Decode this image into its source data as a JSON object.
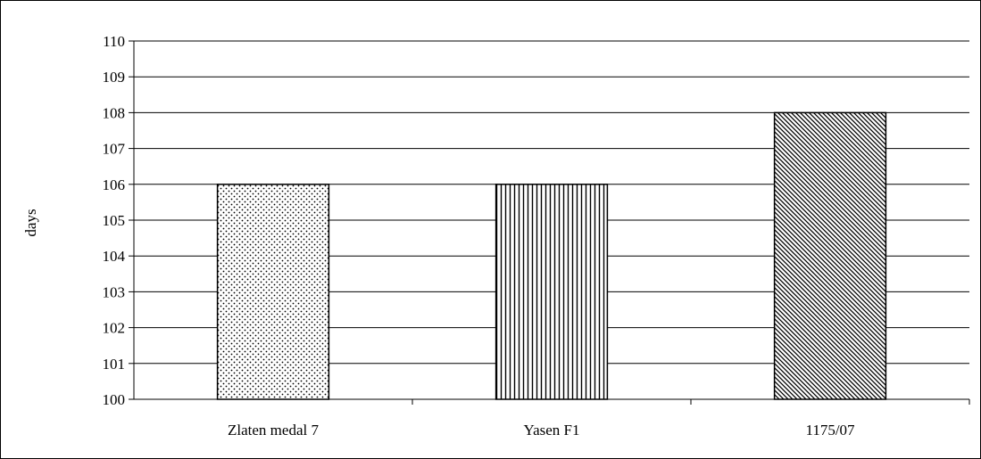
{
  "chart_data": {
    "type": "bar",
    "title": "",
    "xlabel": "",
    "ylabel": "days",
    "ylim": [
      100,
      110
    ],
    "yticks": [
      100,
      101,
      102,
      103,
      104,
      105,
      106,
      107,
      108,
      109,
      110
    ],
    "categories": [
      "Zlaten medal 7",
      "Yasen F1",
      "1175/07"
    ],
    "values": [
      106,
      106,
      108
    ],
    "bar_patterns": [
      "dots",
      "vertical-lines",
      "diagonal-lines"
    ],
    "grid": true,
    "legend": "none"
  }
}
